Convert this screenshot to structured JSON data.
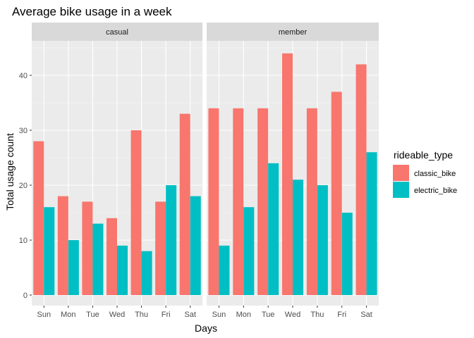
{
  "chart_data": {
    "type": "bar",
    "title": "Average bike usage in a week",
    "xlabel": "Days",
    "ylabel": "Total usage count",
    "ylim": [
      0,
      46
    ],
    "yticks": [
      0,
      10,
      20,
      30,
      40
    ],
    "grid": true,
    "legend": {
      "title": "rideable_type",
      "position": "right",
      "entries": [
        {
          "label": "classic_bike",
          "color": "#F8766D"
        },
        {
          "label": "electric_bike",
          "color": "#00BFC4"
        }
      ]
    },
    "categories": [
      "Sun",
      "Mon",
      "Tue",
      "Wed",
      "Thu",
      "Fri",
      "Sat"
    ],
    "facets": [
      {
        "label": "casual",
        "series": [
          {
            "name": "classic_bike",
            "values": [
              28,
              18,
              17,
              14,
              30,
              17,
              33
            ]
          },
          {
            "name": "electric_bike",
            "values": [
              16,
              10,
              13,
              9,
              8,
              20,
              18
            ]
          }
        ]
      },
      {
        "label": "member",
        "series": [
          {
            "name": "classic_bike",
            "values": [
              34,
              34,
              34,
              44,
              34,
              37,
              42
            ]
          },
          {
            "name": "electric_bike",
            "values": [
              9,
              16,
              24,
              21,
              20,
              15,
              26
            ]
          }
        ]
      }
    ]
  }
}
